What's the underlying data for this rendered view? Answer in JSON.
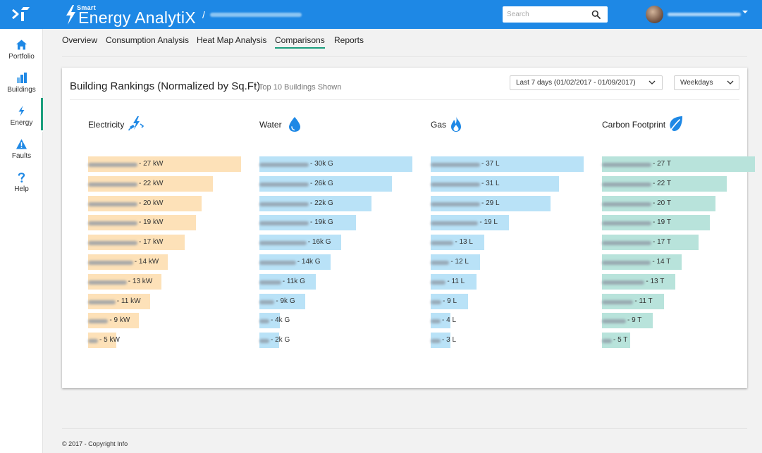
{
  "app": {
    "smart": "Smart",
    "name": "Energy AnalytiX",
    "crumb_separator": "/"
  },
  "search": {
    "placeholder": "Search",
    "icon": "search-icon"
  },
  "colors": {
    "header": "#1e88e5",
    "accent": "#1b9e7d",
    "electricity": "#fde1b8",
    "water": "#b9e2f7",
    "gas": "#b9e2f7",
    "carbon": "#b8e3db",
    "icon": "#1e88e5"
  },
  "sidebar": {
    "items": [
      {
        "label": "Portfolio",
        "icon": "home-icon"
      },
      {
        "label": "Buildings",
        "icon": "buildings-icon"
      },
      {
        "label": "Energy",
        "icon": "bolt-icon",
        "active": true
      },
      {
        "label": "Faults",
        "icon": "warning-icon"
      },
      {
        "label": "Help",
        "icon": "question-icon"
      }
    ]
  },
  "tabs": [
    "Overview",
    "Consumption Analysis",
    "Heat Map Analysis",
    "Comparisons",
    "Reports"
  ],
  "active_tab": "Comparisons",
  "card": {
    "title": "Building Rankings (Normalized by Sq.Ft)",
    "subtitle": "/ Top 10 Buildings Shown",
    "date_range": "Last 7 days (01/02/2017 - 01/09/2017)",
    "day_filter": "Weekdays"
  },
  "chart_data": [
    {
      "type": "bar",
      "title": "Electricity",
      "icon": "plug-bolt-icon",
      "unit": "kW",
      "labels": [
        "- 27 kW",
        "- 22 kW",
        "- 20 kW",
        "- 19 kW",
        "- 17 kW",
        "- 14 kW",
        "- 13 kW",
        "- 11 kW",
        "- 9 kW",
        "- 5 kW"
      ],
      "values": [
        27,
        22,
        20,
        19,
        17,
        14,
        13,
        11,
        9,
        5
      ]
    },
    {
      "type": "bar",
      "title": "Water",
      "icon": "water-drop-icon",
      "unit": "G",
      "labels": [
        "- 30k G",
        "- 26k G",
        "- 22k G",
        "- 19k G",
        "- 16k G",
        "- 14k G",
        "- 11k G",
        "- 9k G",
        "- 4k G",
        "- 2k G"
      ],
      "values": [
        30000,
        26000,
        22000,
        19000,
        16000,
        14000,
        11000,
        9000,
        4000,
        2000
      ]
    },
    {
      "type": "bar",
      "title": "Gas",
      "icon": "flame-icon",
      "unit": "L",
      "labels": [
        "- 37 L",
        "- 31 L",
        "- 29 L",
        "- 19 L",
        "- 13 L",
        "- 12 L",
        "- 11 L",
        "- 9 L",
        "- 4 L",
        "- 3 L"
      ],
      "values": [
        37,
        31,
        29,
        19,
        13,
        12,
        11,
        9,
        4,
        3
      ]
    },
    {
      "type": "bar",
      "title": "Carbon Footprint",
      "icon": "leaf-icon",
      "unit": "T",
      "labels": [
        "- 27 T",
        "- 22 T",
        "- 20 T",
        "- 19 T",
        "- 17 T",
        "- 14 T",
        "- 13 T",
        "- 11 T",
        "- 9 T",
        "- 5 T"
      ],
      "values": [
        27,
        22,
        20,
        19,
        17,
        14,
        13,
        11,
        9,
        5
      ]
    }
  ],
  "footer": "© 2017 - Copyright Info"
}
